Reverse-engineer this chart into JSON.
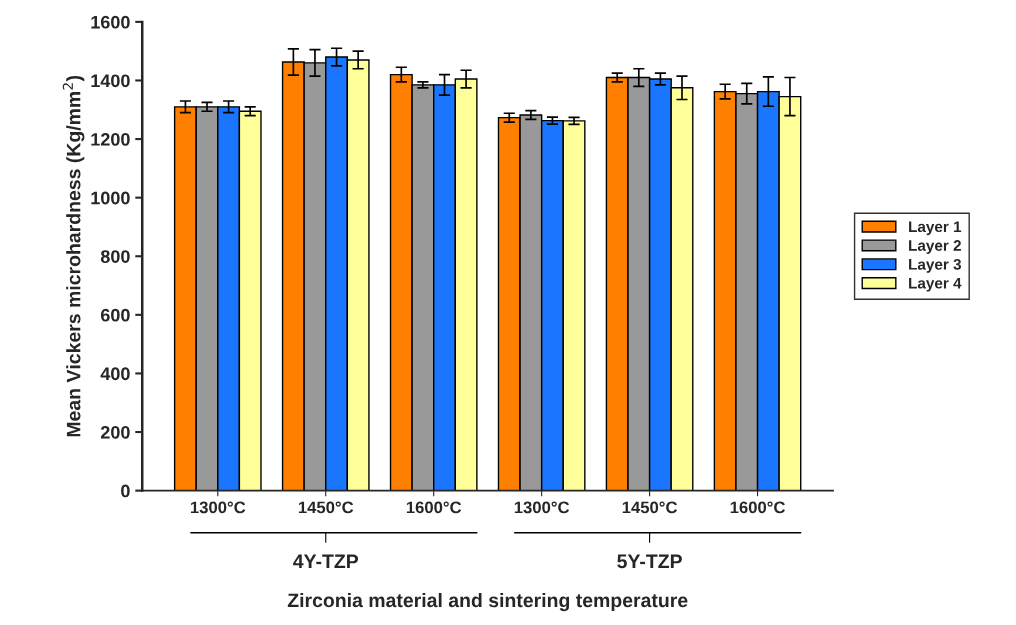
{
  "chart_data": {
    "type": "bar",
    "xlabel": "Zirconia material and sintering temperature",
    "ylabel": "Mean Vickers microhardness (Kg/mm$^{2}$)",
    "categories": [
      "1300°C",
      "1450°C",
      "1600°C",
      "1300°C",
      "1450°C",
      "1600°C"
    ],
    "annotations": [
      "4Y-TZP",
      "5Y-TZP"
    ],
    "series": [
      {
        "name": "Layer 1",
        "color": "#ff7f00",
        "values": [
          1310,
          1463,
          1420,
          1273,
          1410,
          1362
        ],
        "errors": [
          20,
          45,
          25,
          15,
          15,
          25
        ]
      },
      {
        "name": "Layer 2",
        "color": "#999999",
        "values": [
          1310,
          1460,
          1385,
          1282,
          1410,
          1355
        ],
        "errors": [
          15,
          45,
          10,
          15,
          30,
          35
        ]
      },
      {
        "name": "Layer 3",
        "color": "#1a75ff",
        "values": [
          1310,
          1480,
          1385,
          1263,
          1405,
          1362
        ],
        "errors": [
          20,
          30,
          35,
          12,
          20,
          50
        ]
      },
      {
        "name": "Layer 4",
        "color": "#ffff99",
        "values": [
          1295,
          1470,
          1405,
          1262,
          1375,
          1345
        ],
        "errors": [
          15,
          30,
          30,
          12,
          40,
          65
        ]
      }
    ],
    "ylim": [
      0,
      1600
    ],
    "yticks": [
      0,
      200,
      400,
      600,
      800,
      1000,
      1200,
      1400,
      1600
    ],
    "grid": false,
    "legend": "right"
  }
}
